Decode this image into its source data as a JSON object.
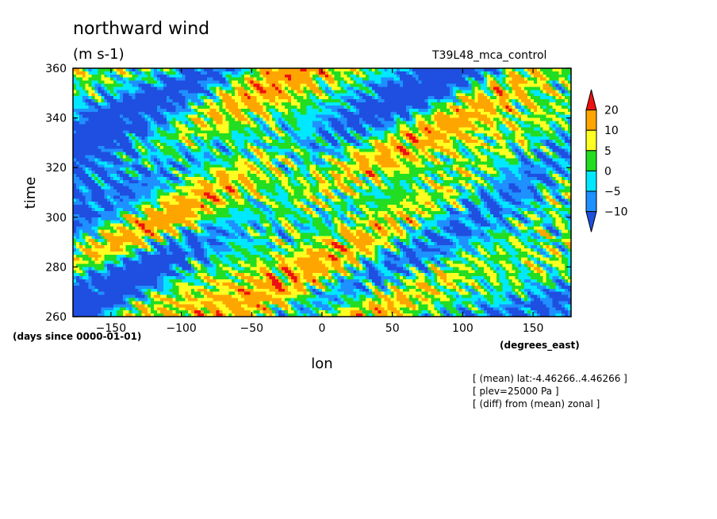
{
  "title": "northward wind",
  "units": "(m s-1)",
  "run_name": "T39L48_mca_control",
  "notes": [
    "[ (mean) lat:-4.46266..4.46266 ]",
    "[ plev=25000 Pa ]",
    "[ (diff) from (mean) zonal ]"
  ],
  "chart_data": {
    "type": "heatmap",
    "title": "northward wind",
    "units": "(m s-1)",
    "xlabel": "lon",
    "xunits": "(degrees_east)",
    "ylabel": "time",
    "yunits": "(days since 0000-01-01)",
    "xlim": [
      -177,
      177
    ],
    "ylim": [
      260,
      360
    ],
    "xticks": [
      -150,
      -100,
      -50,
      0,
      50,
      100,
      150
    ],
    "yticks": [
      260,
      280,
      300,
      320,
      340,
      360
    ],
    "colorbar": {
      "levels": [
        -10,
        -5,
        0,
        5,
        10,
        20
      ],
      "colors": [
        "#1f4fe0",
        "#1e90ff",
        "#00e8ff",
        "#22dd22",
        "#ffff22",
        "#ffa500",
        "#ee1111"
      ],
      "extend": "both"
    }
  }
}
